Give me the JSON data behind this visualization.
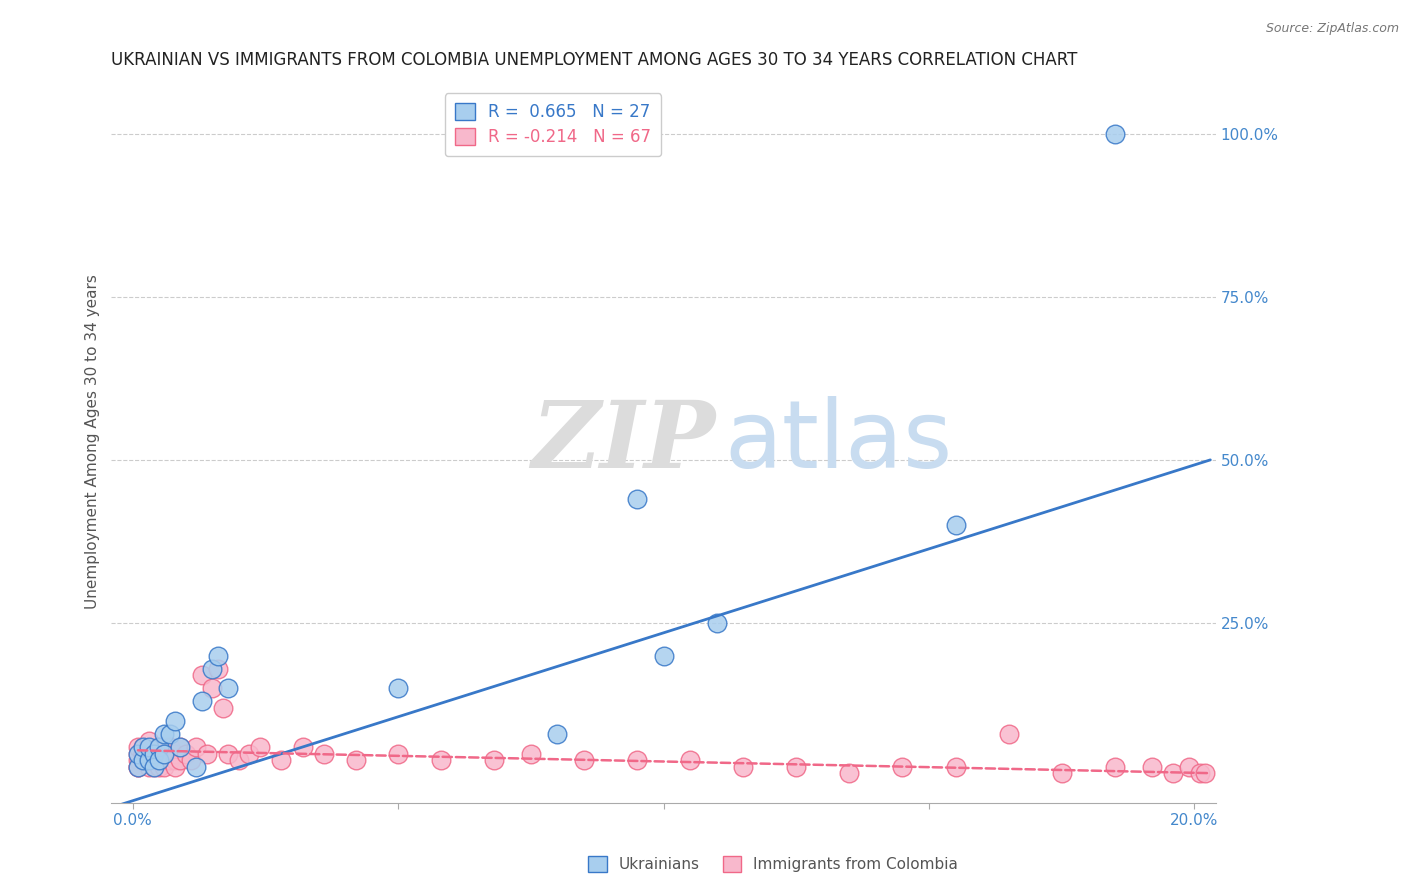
{
  "title": "UKRAINIAN VS IMMIGRANTS FROM COLOMBIA UNEMPLOYMENT AMONG AGES 30 TO 34 YEARS CORRELATION CHART",
  "source": "Source: ZipAtlas.com",
  "ylabel": "Unemployment Among Ages 30 to 34 years",
  "right_yticks": [
    "100.0%",
    "75.0%",
    "50.0%",
    "25.0%"
  ],
  "right_ytick_vals": [
    1.0,
    0.75,
    0.5,
    0.25
  ],
  "xlim": [
    -0.004,
    0.204
  ],
  "ylim": [
    -0.025,
    1.08
  ],
  "ukrainian_color": "#A8CEEE",
  "colombian_color": "#F8B8CC",
  "trend_blue": "#3878C8",
  "trend_pink": "#F06888",
  "legend_R_blue": "R =  0.665   N = 27",
  "legend_R_pink": "R = -0.214   N = 67",
  "legend_label_blue": "Ukrainians",
  "legend_label_pink": "Immigrants from Colombia",
  "watermark_zip": "ZIP",
  "watermark_atlas": "atlas",
  "grid_color": "#CCCCCC",
  "background_color": "#FFFFFF",
  "title_color": "#222222",
  "axis_label_color": "#4488CC",
  "ukrainian_x": [
    0.001,
    0.001,
    0.002,
    0.002,
    0.003,
    0.003,
    0.004,
    0.004,
    0.005,
    0.005,
    0.006,
    0.006,
    0.007,
    0.008,
    0.009,
    0.012,
    0.013,
    0.015,
    0.016,
    0.018,
    0.05,
    0.08,
    0.095,
    0.1,
    0.11,
    0.155,
    0.185
  ],
  "ukrainian_y": [
    0.03,
    0.05,
    0.04,
    0.06,
    0.04,
    0.06,
    0.05,
    0.03,
    0.06,
    0.04,
    0.05,
    0.08,
    0.08,
    0.1,
    0.06,
    0.03,
    0.13,
    0.18,
    0.2,
    0.15,
    0.15,
    0.08,
    0.44,
    0.2,
    0.25,
    0.4,
    1.0
  ],
  "colombian_x": [
    0.001,
    0.001,
    0.001,
    0.001,
    0.001,
    0.002,
    0.002,
    0.002,
    0.002,
    0.002,
    0.003,
    0.003,
    0.003,
    0.003,
    0.003,
    0.004,
    0.004,
    0.004,
    0.005,
    0.005,
    0.005,
    0.006,
    0.006,
    0.006,
    0.007,
    0.007,
    0.008,
    0.008,
    0.008,
    0.009,
    0.009,
    0.01,
    0.011,
    0.012,
    0.013,
    0.014,
    0.015,
    0.016,
    0.017,
    0.018,
    0.02,
    0.022,
    0.024,
    0.028,
    0.032,
    0.036,
    0.042,
    0.05,
    0.058,
    0.068,
    0.075,
    0.085,
    0.095,
    0.105,
    0.115,
    0.125,
    0.135,
    0.145,
    0.155,
    0.165,
    0.175,
    0.185,
    0.192,
    0.196,
    0.199,
    0.201,
    0.202
  ],
  "colombian_y": [
    0.03,
    0.04,
    0.05,
    0.06,
    0.03,
    0.04,
    0.05,
    0.06,
    0.04,
    0.05,
    0.03,
    0.04,
    0.05,
    0.07,
    0.04,
    0.03,
    0.04,
    0.05,
    0.03,
    0.04,
    0.06,
    0.04,
    0.05,
    0.03,
    0.04,
    0.06,
    0.04,
    0.05,
    0.03,
    0.04,
    0.06,
    0.05,
    0.04,
    0.06,
    0.17,
    0.05,
    0.15,
    0.18,
    0.12,
    0.05,
    0.04,
    0.05,
    0.06,
    0.04,
    0.06,
    0.05,
    0.04,
    0.05,
    0.04,
    0.04,
    0.05,
    0.04,
    0.04,
    0.04,
    0.03,
    0.03,
    0.02,
    0.03,
    0.03,
    0.08,
    0.02,
    0.03,
    0.03,
    0.02,
    0.03,
    0.02,
    0.02
  ],
  "trend_blue_x0": -0.003,
  "trend_blue_x1": 0.203,
  "trend_blue_y0": -0.03,
  "trend_blue_y1": 0.5,
  "trend_pink_x0": 0.001,
  "trend_pink_x1": 0.203,
  "trend_pink_y0": 0.055,
  "trend_pink_y1": 0.02
}
